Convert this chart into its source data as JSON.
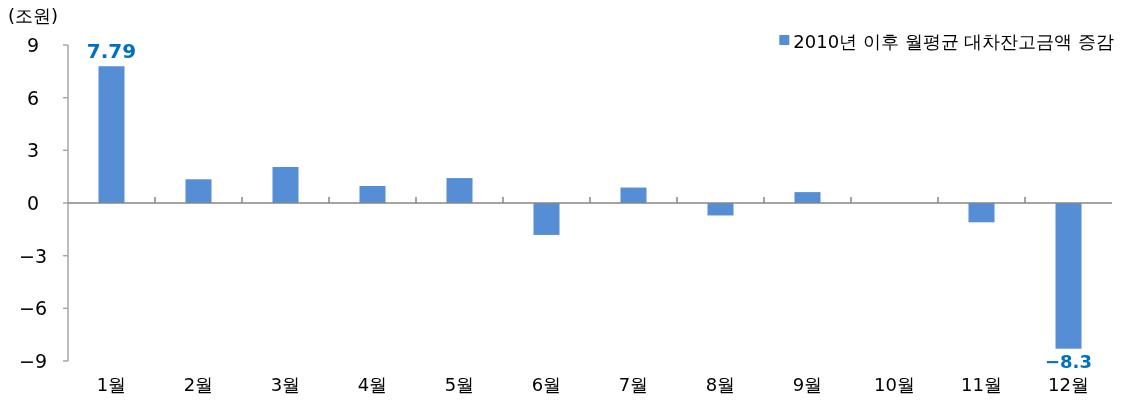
{
  "chart_data": {
    "type": "bar",
    "ylabel": "(조원)",
    "legend": "top right",
    "categories": [
      "1월",
      "2월",
      "3월",
      "4월",
      "5월",
      "6월",
      "7월",
      "8월",
      "9월",
      "10월",
      "11월",
      "12월"
    ],
    "series": [
      {
        "name": "2010년 이후 월평균 대차잔고금액 증감",
        "color": "#558ed5",
        "values": [
          7.79,
          1.35,
          2.05,
          0.97,
          1.42,
          -1.82,
          0.88,
          -0.71,
          0.62,
          null,
          -1.1,
          -8.3
        ],
        "value_labels": [
          "7.79",
          null,
          null,
          null,
          null,
          null,
          null,
          null,
          null,
          null,
          null,
          "−8.3"
        ]
      }
    ],
    "ylim": [
      -9,
      9
    ],
    "yticks": [
      9,
      6,
      3,
      0,
      {
        "value": -3,
        "label": "−3"
      },
      {
        "value": -6,
        "label": "−6"
      },
      {
        "value": -9,
        "label": "−9"
      }
    ]
  }
}
